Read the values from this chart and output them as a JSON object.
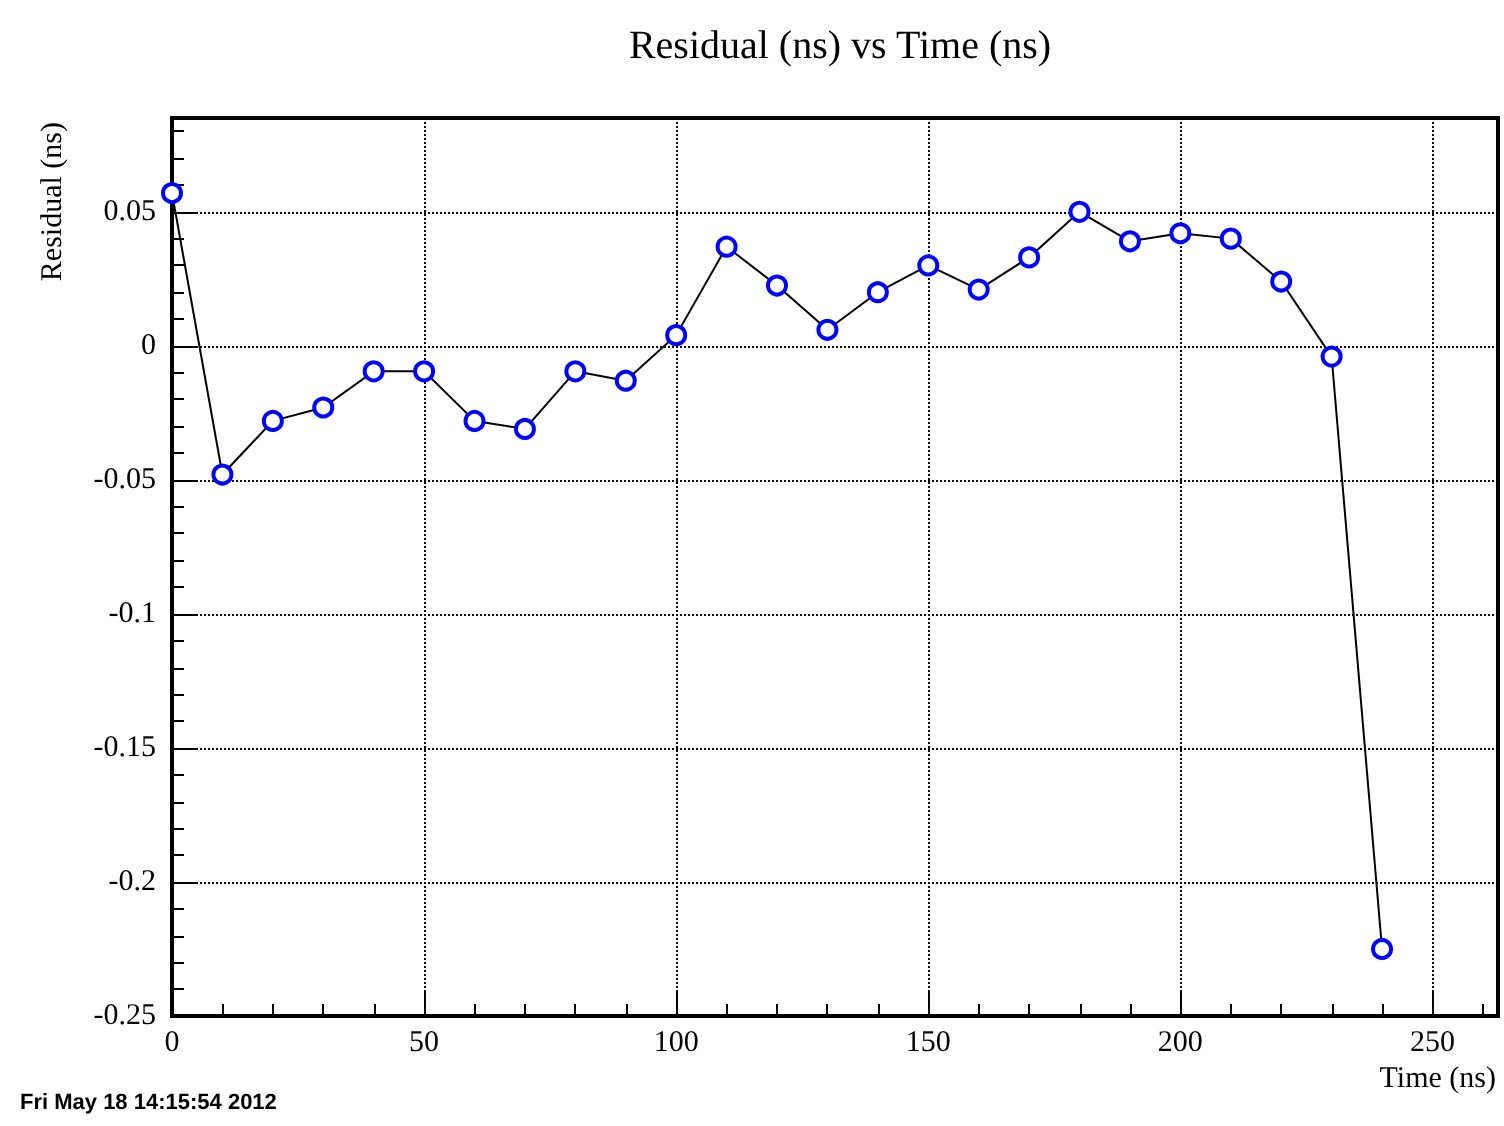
{
  "chart_data": {
    "type": "line",
    "title": "Residual (ns) vs Time (ns)",
    "xlabel": "Time (ns)",
    "ylabel": "Residual (ns)",
    "annotations": [
      "Fri May 18 14:15:54 2012"
    ],
    "x": [
      0,
      10,
      20,
      30,
      40,
      50,
      60,
      70,
      80,
      90,
      100,
      110,
      120,
      130,
      140,
      150,
      160,
      170,
      180,
      190,
      200,
      210,
      220,
      230,
      240
    ],
    "series": [
      {
        "color": "#0000ff",
        "values": [
          0.057,
          -0.048,
          -0.028,
          -0.023,
          -0.0095,
          -0.0095,
          -0.028,
          -0.031,
          -0.0095,
          -0.013,
          0.004,
          0.037,
          0.0225,
          0.006,
          0.02,
          0.03,
          0.021,
          0.033,
          0.05,
          0.039,
          0.042,
          0.04,
          0.024,
          -0.004,
          -0.225
        ]
      }
    ],
    "xlim": [
      0,
      263
    ],
    "ylim": [
      -0.25,
      0.085
    ],
    "xticks": [
      0,
      50,
      100,
      150,
      200,
      250
    ],
    "yticks": [
      -0.25,
      -0.2,
      -0.15,
      -0.1,
      -0.05,
      0,
      0.05
    ],
    "grid": true,
    "marker": "circle",
    "line_style": "solid"
  }
}
